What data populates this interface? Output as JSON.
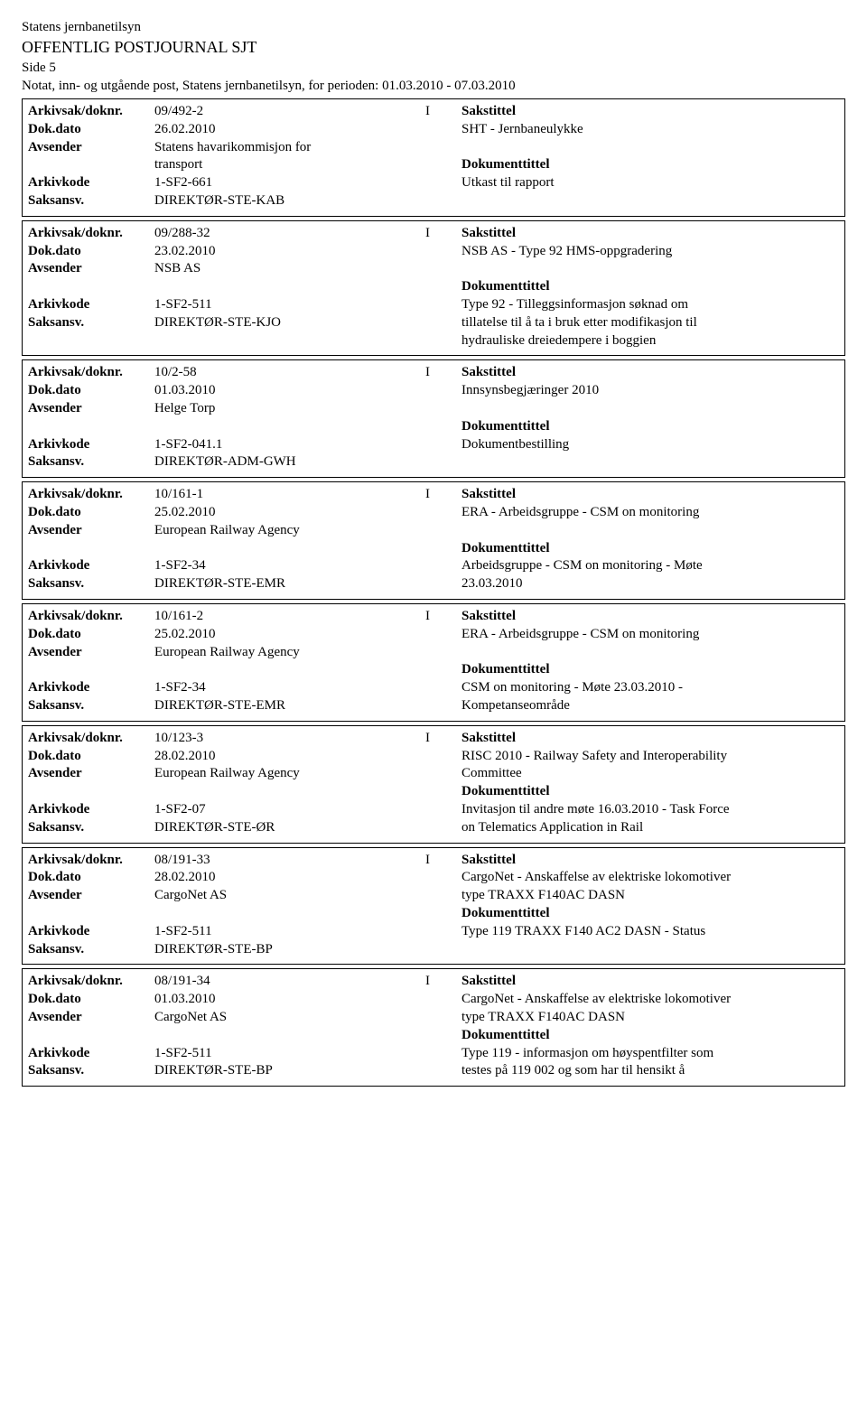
{
  "header": {
    "org": "Statens jernbanetilsyn",
    "journal": "OFFENTLIG POSTJOURNAL SJT",
    "page": "Side 5",
    "period": "Notat, inn- og utgående post, Statens jernbanetilsyn, for perioden: 01.03.2010 - 07.03.2010"
  },
  "labels": {
    "arkivsak": "Arkivsak/doknr.",
    "dokdato": "Dok.dato",
    "avsender": "Avsender",
    "arkivkode": "Arkivkode",
    "saksansv": "Saksansv.",
    "sakstittel": "Sakstittel",
    "dokumenttittel": "Dokumenttittel"
  },
  "records": [
    {
      "doknr": "09/492-2",
      "io": "I",
      "dokdato": "26.02.2010",
      "avsender": [
        "Statens havarikommisjon for",
        "transport"
      ],
      "arkivkode": "1-SF2-661",
      "saksansv": "DIREKTØR-STE-KAB",
      "sakstittel": [
        "SHT - Jernbaneulykke"
      ],
      "doktittel": [
        "Utkast til rapport"
      ],
      "layout": "a"
    },
    {
      "doknr": "09/288-32",
      "io": "I",
      "dokdato": "23.02.2010",
      "avsender": [
        "NSB AS"
      ],
      "arkivkode": "1-SF2-511",
      "saksansv": "DIREKTØR-STE-KJO",
      "sakstittel": [
        "NSB AS - Type 92 HMS-oppgradering"
      ],
      "doktittel": [
        "Type 92 - Tilleggsinformasjon søknad om",
        "tillatelse til å ta i bruk etter modifikasjon til",
        "hydrauliske dreiedempere i boggien"
      ],
      "layout": "b"
    },
    {
      "doknr": "10/2-58",
      "io": "I",
      "dokdato": "01.03.2010",
      "avsender": [
        "Helge Torp"
      ],
      "arkivkode": "1-SF2-041.1",
      "saksansv": "DIREKTØR-ADM-GWH",
      "sakstittel": [
        "Innsynsbegjæringer 2010"
      ],
      "doktittel": [
        "Dokumentbestilling"
      ],
      "layout": "b"
    },
    {
      "doknr": "10/161-1",
      "io": "I",
      "dokdato": "25.02.2010",
      "avsender": [
        "European Railway Agency"
      ],
      "arkivkode": "1-SF2-34",
      "saksansv": "DIREKTØR-STE-EMR",
      "sakstittel": [
        "ERA - Arbeidsgruppe - CSM on monitoring"
      ],
      "doktittel": [
        "Arbeidsgruppe - CSM on monitoring  - Møte",
        "23.03.2010"
      ],
      "layout": "b"
    },
    {
      "doknr": "10/161-2",
      "io": "I",
      "dokdato": "25.02.2010",
      "avsender": [
        "European Railway Agency"
      ],
      "arkivkode": "1-SF2-34",
      "saksansv": "DIREKTØR-STE-EMR",
      "sakstittel": [
        "ERA - Arbeidsgruppe - CSM on monitoring"
      ],
      "doktittel": [
        "CSM on monitoring  - Møte 23.03.2010 -",
        "Kompetanseområde"
      ],
      "layout": "b"
    },
    {
      "doknr": "10/123-3",
      "io": "I",
      "dokdato": "28.02.2010",
      "avsender": [
        "European Railway Agency"
      ],
      "arkivkode": "1-SF2-07",
      "saksansv": "DIREKTØR-STE-ØR",
      "sakstittel": [
        "RISC 2010 - Railway Safety and Interoperability",
        "Committee"
      ],
      "doktittel": [
        "Invitasjon til andre møte 16.03.2010 - Task Force",
        "on Telematics Application in Rail"
      ],
      "layout": "c"
    },
    {
      "doknr": "08/191-33",
      "io": "I",
      "dokdato": "28.02.2010",
      "avsender": [
        "CargoNet AS"
      ],
      "arkivkode": "1-SF2-511",
      "saksansv": "DIREKTØR-STE-BP",
      "sakstittel": [
        "CargoNet - Anskaffelse av elektriske lokomotiver",
        "type TRAXX F140AC DASN"
      ],
      "doktittel": [
        "Type 119 TRAXX F140 AC2 DASN - Status"
      ],
      "layout": "c"
    },
    {
      "doknr": "08/191-34",
      "io": "I",
      "dokdato": "01.03.2010",
      "avsender": [
        "CargoNet AS"
      ],
      "arkivkode": "1-SF2-511",
      "saksansv": "DIREKTØR-STE-BP",
      "sakstittel": [
        "CargoNet - Anskaffelse av elektriske lokomotiver",
        "type TRAXX F140AC DASN"
      ],
      "doktittel": [
        "Type 119 - informasjon om høyspentfilter som",
        "testes på 119 002 og som har til hensikt å"
      ],
      "layout": "c"
    }
  ]
}
